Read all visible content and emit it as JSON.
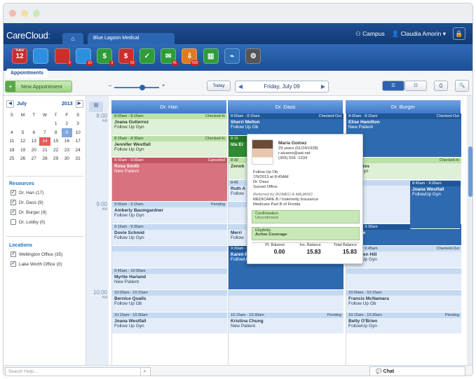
{
  "app": {
    "brand": "CareCloud",
    "practice_tab": "Blue Lagoon Medical",
    "location": "Campus",
    "user": "Claudia Amorin"
  },
  "icons": [
    {
      "name": "calendar-icon",
      "text": "12",
      "top": "TUES",
      "badge": "",
      "color": "#c9302c"
    },
    {
      "name": "users-icon",
      "text": "",
      "badge": "",
      "color": "#2d8fe0"
    },
    {
      "name": "patients-icon",
      "text": "",
      "badge": "9",
      "color": "#c9302c"
    },
    {
      "name": "physician-icon",
      "text": "",
      "badge": "10",
      "color": "#2d8fe0"
    },
    {
      "name": "billing-icon",
      "text": "$",
      "badge": "3",
      "color": "#2f9c3a"
    },
    {
      "name": "claims-icon",
      "text": "$",
      "badge": "50",
      "color": "#c9302c"
    },
    {
      "name": "tasks-icon",
      "text": "✓",
      "badge": "",
      "color": "#2f9c3a"
    },
    {
      "name": "messages-icon",
      "text": "✉",
      "badge": "41",
      "color": "#2f9c3a"
    },
    {
      "name": "documents-icon",
      "text": "⇩",
      "badge": "592",
      "color": "#e07a1f"
    },
    {
      "name": "library-icon",
      "text": "▥",
      "badge": "",
      "color": "#2f9c3a"
    },
    {
      "name": "reports-icon",
      "text": "⌁",
      "badge": "",
      "color": "#2d6fb8"
    },
    {
      "name": "settings-icon",
      "text": "⚙",
      "badge": "",
      "color": "#555"
    }
  ],
  "appointments_tab": "Appointments",
  "toolbar": {
    "new_appt": "New Appointment",
    "zoom_minus": "–",
    "zoom_plus": "+",
    "today": "Today",
    "date": "Friday, July 09"
  },
  "calendar": {
    "month": "July",
    "year": "2013",
    "days": [
      "S",
      "M",
      "T",
      "W",
      "T",
      "F",
      "S"
    ],
    "weeks": [
      [
        "",
        "",
        "",
        "",
        "1",
        "2",
        "3"
      ],
      [
        "4",
        "5",
        "6",
        "7",
        "8",
        "9",
        "10"
      ],
      [
        "11",
        "12",
        "13",
        "14",
        "15",
        "16",
        "17"
      ],
      [
        "18",
        "19",
        "20",
        "21",
        "22",
        "23",
        "24"
      ],
      [
        "25",
        "26",
        "27",
        "28",
        "29",
        "30",
        "31"
      ]
    ]
  },
  "resources": {
    "title": "Resources",
    "items": [
      {
        "label": "Dr. Han (17)",
        "checked": true
      },
      {
        "label": "Dr. Dass (9)",
        "checked": true
      },
      {
        "label": "Dr. Burger (9)",
        "checked": true
      },
      {
        "label": "Dr. Lobby (0)",
        "checked": false
      }
    ]
  },
  "locations": {
    "title": "Locations",
    "items": [
      {
        "label": "Wellington Office (35)",
        "checked": true
      },
      {
        "label": "Lake Worth Office (0)",
        "checked": true
      }
    ]
  },
  "times": [
    {
      "t": "8:00",
      "ap": "AM"
    },
    {
      "t": "9:00",
      "ap": "AM"
    },
    {
      "t": "10:00",
      "ap": "AM"
    }
  ],
  "columns": [
    {
      "name": "Dr. Han",
      "appts": [
        {
          "time": "8:00am - 8:15am",
          "status": "Checked-In",
          "name": "Joana Gutierrez",
          "reason": "Follow Up Gyn",
          "kind": "chin",
          "slot": 0,
          "len": 1
        },
        {
          "time": "8:15am - 8:30am",
          "status": "Checked-In",
          "name": "Jennifer Westfall",
          "reason": "Follow Up Gyn",
          "kind": "chin",
          "slot": 1,
          "len": 1
        },
        {
          "time": "8:30am - 9:00am",
          "status": "Cancelled",
          "name": "Rosa Smith",
          "reason": "New Patient",
          "kind": "canc",
          "slot": 2,
          "len": 2
        },
        {
          "time": "9:00am - 9:15am",
          "status": "Pending",
          "name": "Amberly Baumgardner",
          "reason": "Follow Up Gyn",
          "kind": "pend",
          "slot": 4,
          "len": 1
        },
        {
          "time": "9:15am - 9:30am",
          "status": "",
          "name": "Dovie Schmid",
          "reason": "Follow Up Gyn",
          "kind": "pend",
          "slot": 5,
          "len": 1
        },
        {
          "time": "",
          "status": "",
          "name": "",
          "reason": "",
          "kind": "pend",
          "slot": 6,
          "len": 1
        },
        {
          "time": "9:45am - 10:00am",
          "status": "",
          "name": "Myrtle Harland",
          "reason": "New Patient",
          "kind": "pend",
          "slot": 7,
          "len": 1
        },
        {
          "time": "10:00am - 10:15am",
          "status": "",
          "name": "Bernice Qualls",
          "reason": "Follow Up Ob",
          "kind": "pend",
          "slot": 8,
          "len": 1
        },
        {
          "time": "10:15am - 10:30am",
          "status": "",
          "name": "Joana Westfall",
          "reason": "Follow Up Gyn",
          "kind": "pend",
          "slot": 9,
          "len": 1
        }
      ]
    },
    {
      "name": "Dr. Dass",
      "appts": [
        {
          "time": "8:00am - 8:15am",
          "status": "Checked-Out",
          "name": "Sherri Melton",
          "reason": "Follow Up Ob",
          "kind": "chout",
          "slot": 0,
          "len": 1
        },
        {
          "time": "8:15",
          "status": "",
          "name": "Ida Er",
          "reason": "",
          "kind": "dgrn",
          "slot": 1,
          "len": 1
        },
        {
          "time": "8:30",
          "status": "",
          "name": "Zenob",
          "reason": "",
          "kind": "chin",
          "slot": 2,
          "len": 1
        },
        {
          "time": "8:45",
          "status": "",
          "name": "Ruth A",
          "reason": "Follow",
          "kind": "pend",
          "slot": 3,
          "len": 1
        },
        {
          "time": "",
          "status": "",
          "name": "",
          "reason": "",
          "kind": "pend",
          "slot": 4,
          "len": 1
        },
        {
          "time": "",
          "status": "",
          "name": "Merri",
          "reason": "Follow",
          "kind": "pend",
          "slot": 5,
          "len": 1
        },
        {
          "time": "9:30am - 10:00am",
          "status": "Checked-Out",
          "name": "Karen Puckett",
          "reason": "FollowUp Gyn",
          "kind": "chout",
          "slot": 6,
          "len": 2
        },
        {
          "time": "",
          "status": "",
          "name": "",
          "reason": "",
          "kind": "pend",
          "slot": 8,
          "len": 1
        },
        {
          "time": "10:15am - 10:30am",
          "status": "Pending",
          "name": "Kristina Chung",
          "reason": "New Patient",
          "kind": "pend",
          "slot": 9,
          "len": 1
        }
      ]
    },
    {
      "name": "Dr. Burger",
      "appts": [
        {
          "time": "8:00am - 8:15am",
          "status": "Checked-Out",
          "name": "Elise Hamilton",
          "reason": "New Patient",
          "kind": "chout",
          "slot": 0,
          "len": 2
        },
        {
          "time": "8:45am",
          "status": "Checked-In",
          "name": "ia Barrios",
          "reason": "w Up Gyn",
          "kind": "chin",
          "slot": 2,
          "len": 1
        },
        {
          "time": "",
          "status": "",
          "name": "omez",
          "reason": "Gyn",
          "kind": "pend",
          "slot": 3,
          "len": 2
        },
        {
          "time": "9:15am - 9:30am",
          "status": "Pending",
          "name": "D White",
          "reason": "Gyn",
          "kind": "chout",
          "slot": 5,
          "len": 1
        },
        {
          "time": "9:30am - 9:45am",
          "status": "Checked-Out",
          "name": "Gretchen Hill",
          "reason": "FollowUp Gyn",
          "kind": "pend",
          "slot": 6,
          "len": 1
        },
        {
          "time": "",
          "status": "",
          "name": "",
          "reason": "",
          "kind": "pend",
          "slot": 7,
          "len": 1
        },
        {
          "time": "10:00am - 10:15am",
          "status": "",
          "name": "Francis McNamara",
          "reason": "Follow Up Ob",
          "kind": "pend",
          "slot": 8,
          "len": 1
        },
        {
          "time": "10:15am - 10:30am",
          "status": "Pending",
          "name": "Betty O'Brien",
          "reason": "FollowUp Gyn",
          "kind": "pend",
          "slot": 9,
          "len": 1
        }
      ]
    }
  ],
  "overlay": {
    "time": "8:45am - 9:00am",
    "name": "Joana Westfall",
    "reason": "FollowUp Gyn"
  },
  "popup": {
    "name": "Maria Gomez",
    "age": "29 years (01/24/1928)",
    "email": "r.alvarez@aat.net",
    "phone": "(305) 555 -1234",
    "visit": "Follow Up Ob",
    "datetime": "7/9/2013 at 8:45AM",
    "doctor": "Dr. Dass",
    "office": "Sunset Office",
    "referred": "Referred by ROMEO A MAJANO",
    "ins1": "MEDICARE B / Indemnity Insurance",
    "ins2": "Medicare Part B of Florida",
    "conf_label": "Confirmation",
    "conf_value": "Unconfirmed",
    "elig_label": "Eligibility",
    "elig_value": "Active Coverage",
    "balances": [
      {
        "label": "Pt. Balance",
        "value": "0.00"
      },
      {
        "label": "Ins. Balance",
        "value": "15.83"
      },
      {
        "label": "Total Balance",
        "value": "15.83"
      }
    ]
  },
  "bottom": {
    "search_placeholder": "Search Help...",
    "chat": "Chat"
  }
}
